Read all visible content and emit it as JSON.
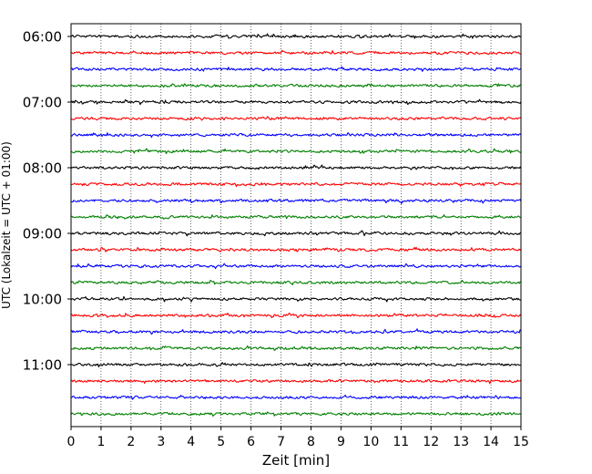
{
  "chart_data": {
    "type": "line",
    "title": "",
    "xlabel": "Zeit  [min]",
    "ylabel": "UTC (Lokalzeit = UTC + 01:00)",
    "xlim": [
      0,
      15
    ],
    "x_ticks": [
      0,
      1,
      2,
      3,
      4,
      5,
      6,
      7,
      8,
      9,
      10,
      11,
      12,
      13,
      14,
      15
    ],
    "x_tick_labels": [
      "0",
      "1",
      "2",
      "3",
      "4",
      "5",
      "6",
      "7",
      "8",
      "9",
      "10",
      "11",
      "12",
      "13",
      "14",
      "15"
    ],
    "y_tick_labels": [
      "06:00",
      "07:00",
      "08:00",
      "09:00",
      "10:00",
      "11:00"
    ],
    "trace_start_times": [
      "06:00",
      "06:15",
      "06:30",
      "06:45",
      "07:00",
      "07:15",
      "07:30",
      "07:45",
      "08:00",
      "08:15",
      "08:30",
      "08:45",
      "09:00",
      "09:15",
      "09:30",
      "09:45",
      "10:00",
      "10:15",
      "10:30",
      "10:45",
      "11:00",
      "11:15",
      "11:30",
      "11:45"
    ],
    "trace_colors": [
      "#000000",
      "#ff0000",
      "#0000ff",
      "#008000"
    ],
    "trace_duration_min": 15,
    "vertical_grid": "dotted",
    "legend": "none"
  }
}
